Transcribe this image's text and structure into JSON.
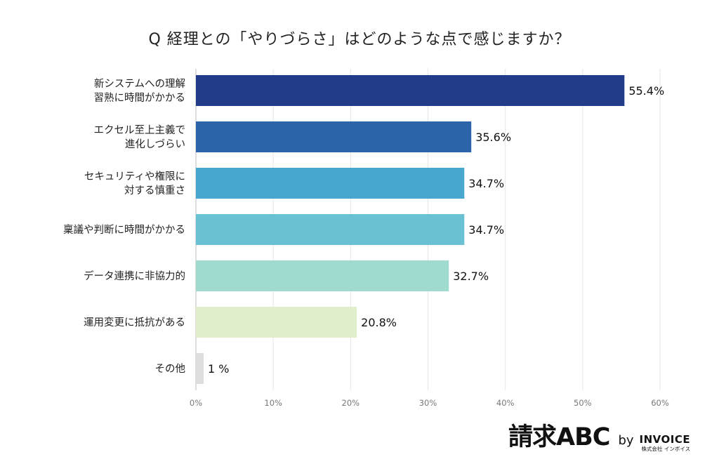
{
  "title": "Q 経理との「やりづらさ」はどのような点で感じますか？",
  "chart_data": {
    "type": "bar",
    "orientation": "horizontal",
    "categories": [
      [
        "新システムへの理解",
        "習熟に時間がかかる"
      ],
      [
        "エクセル至上主義で",
        "進化しづらい"
      ],
      [
        "セキュリティや権限に",
        "対する慎重さ"
      ],
      [
        "稟議や判断に時間がかかる"
      ],
      [
        "データ連携に非協力的"
      ],
      [
        "運用変更に抵抗がある"
      ],
      [
        "その他"
      ]
    ],
    "values": [
      55.4,
      35.6,
      34.7,
      34.7,
      32.7,
      20.8,
      1
    ],
    "value_labels": [
      "55.4%",
      "35.6%",
      "34.7%",
      "34.7%",
      "32.7%",
      "20.8%",
      "1 %"
    ],
    "colors": [
      "#223c8a",
      "#2b64a8",
      "#47a7cf",
      "#6bc1d4",
      "#a0dbd0",
      "#e0eecb",
      "#dedede"
    ],
    "xlim": [
      0,
      60
    ],
    "xticks": [
      0,
      10,
      20,
      30,
      40,
      50,
      60
    ],
    "xtick_labels": [
      "0%",
      "10%",
      "20%",
      "30%",
      "40%",
      "50%",
      "60%"
    ],
    "grid": true
  },
  "logo": {
    "brand": "請求ABC",
    "by": "by",
    "company": "INVOICE",
    "company_sub": "株式会社 インボイス"
  }
}
